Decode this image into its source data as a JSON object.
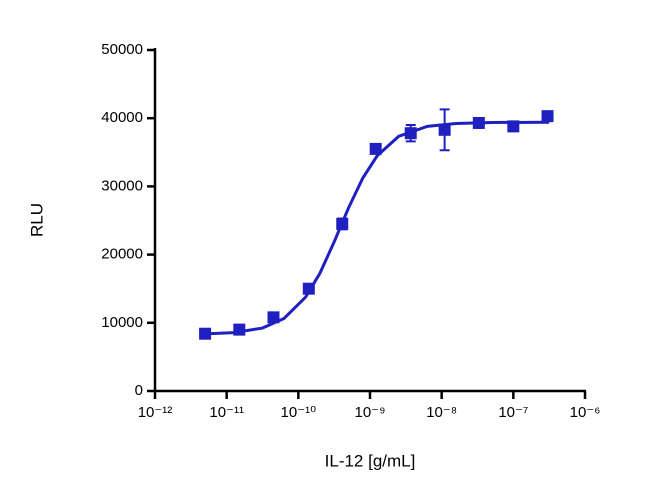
{
  "chart_data": {
    "type": "scatter",
    "x_label": "IL-12 [g/mL]",
    "y_label": "RLU",
    "xscale": "log",
    "xlim": [
      1e-12,
      1e-06
    ],
    "xticks": [
      {
        "value": 1e-12,
        "label": "10⁻¹²"
      },
      {
        "value": 1e-11,
        "label": "10⁻¹¹"
      },
      {
        "value": 1e-10,
        "label": "10⁻¹⁰"
      },
      {
        "value": 1e-09,
        "label": "10⁻⁹"
      },
      {
        "value": 1e-08,
        "label": "10⁻⁸"
      },
      {
        "value": 1e-07,
        "label": "10⁻⁷"
      },
      {
        "value": 1e-06,
        "label": "10⁻⁶"
      }
    ],
    "ylim": [
      0,
      50000
    ],
    "yticks": [
      0,
      10000,
      20000,
      30000,
      40000,
      50000
    ],
    "color": "#2020c0",
    "series": [
      {
        "kind": "points",
        "x": [
          5e-12,
          1.5e-11,
          4.5e-11,
          1.4e-10,
          4.1e-10,
          1.2e-09,
          3.7e-09,
          1.1e-08,
          3.3e-08,
          1e-07,
          3e-07
        ],
        "values": [
          8400,
          9000,
          10800,
          15000,
          24500,
          35500,
          37800,
          38300,
          39300,
          38800,
          40300
        ],
        "errors": [
          500,
          500,
          600,
          600,
          800,
          600,
          1200,
          3000,
          500,
          600,
          600
        ]
      },
      {
        "kind": "curve",
        "x": [
          5e-12,
          1.26e-11,
          3.16e-11,
          6.31e-11,
          1.26e-10,
          2e-10,
          3.16e-10,
          5.01e-10,
          7.94e-10,
          1.26e-09,
          2.51e-09,
          6.31e-09,
          1.58e-08,
          5.01e-08,
          3.16e-07
        ],
        "values": [
          8372,
          8562,
          9230,
          10640,
          13750,
          17260,
          21860,
          26830,
          31230,
          34490,
          37340,
          38800,
          39230,
          39370,
          39400
        ]
      }
    ]
  }
}
